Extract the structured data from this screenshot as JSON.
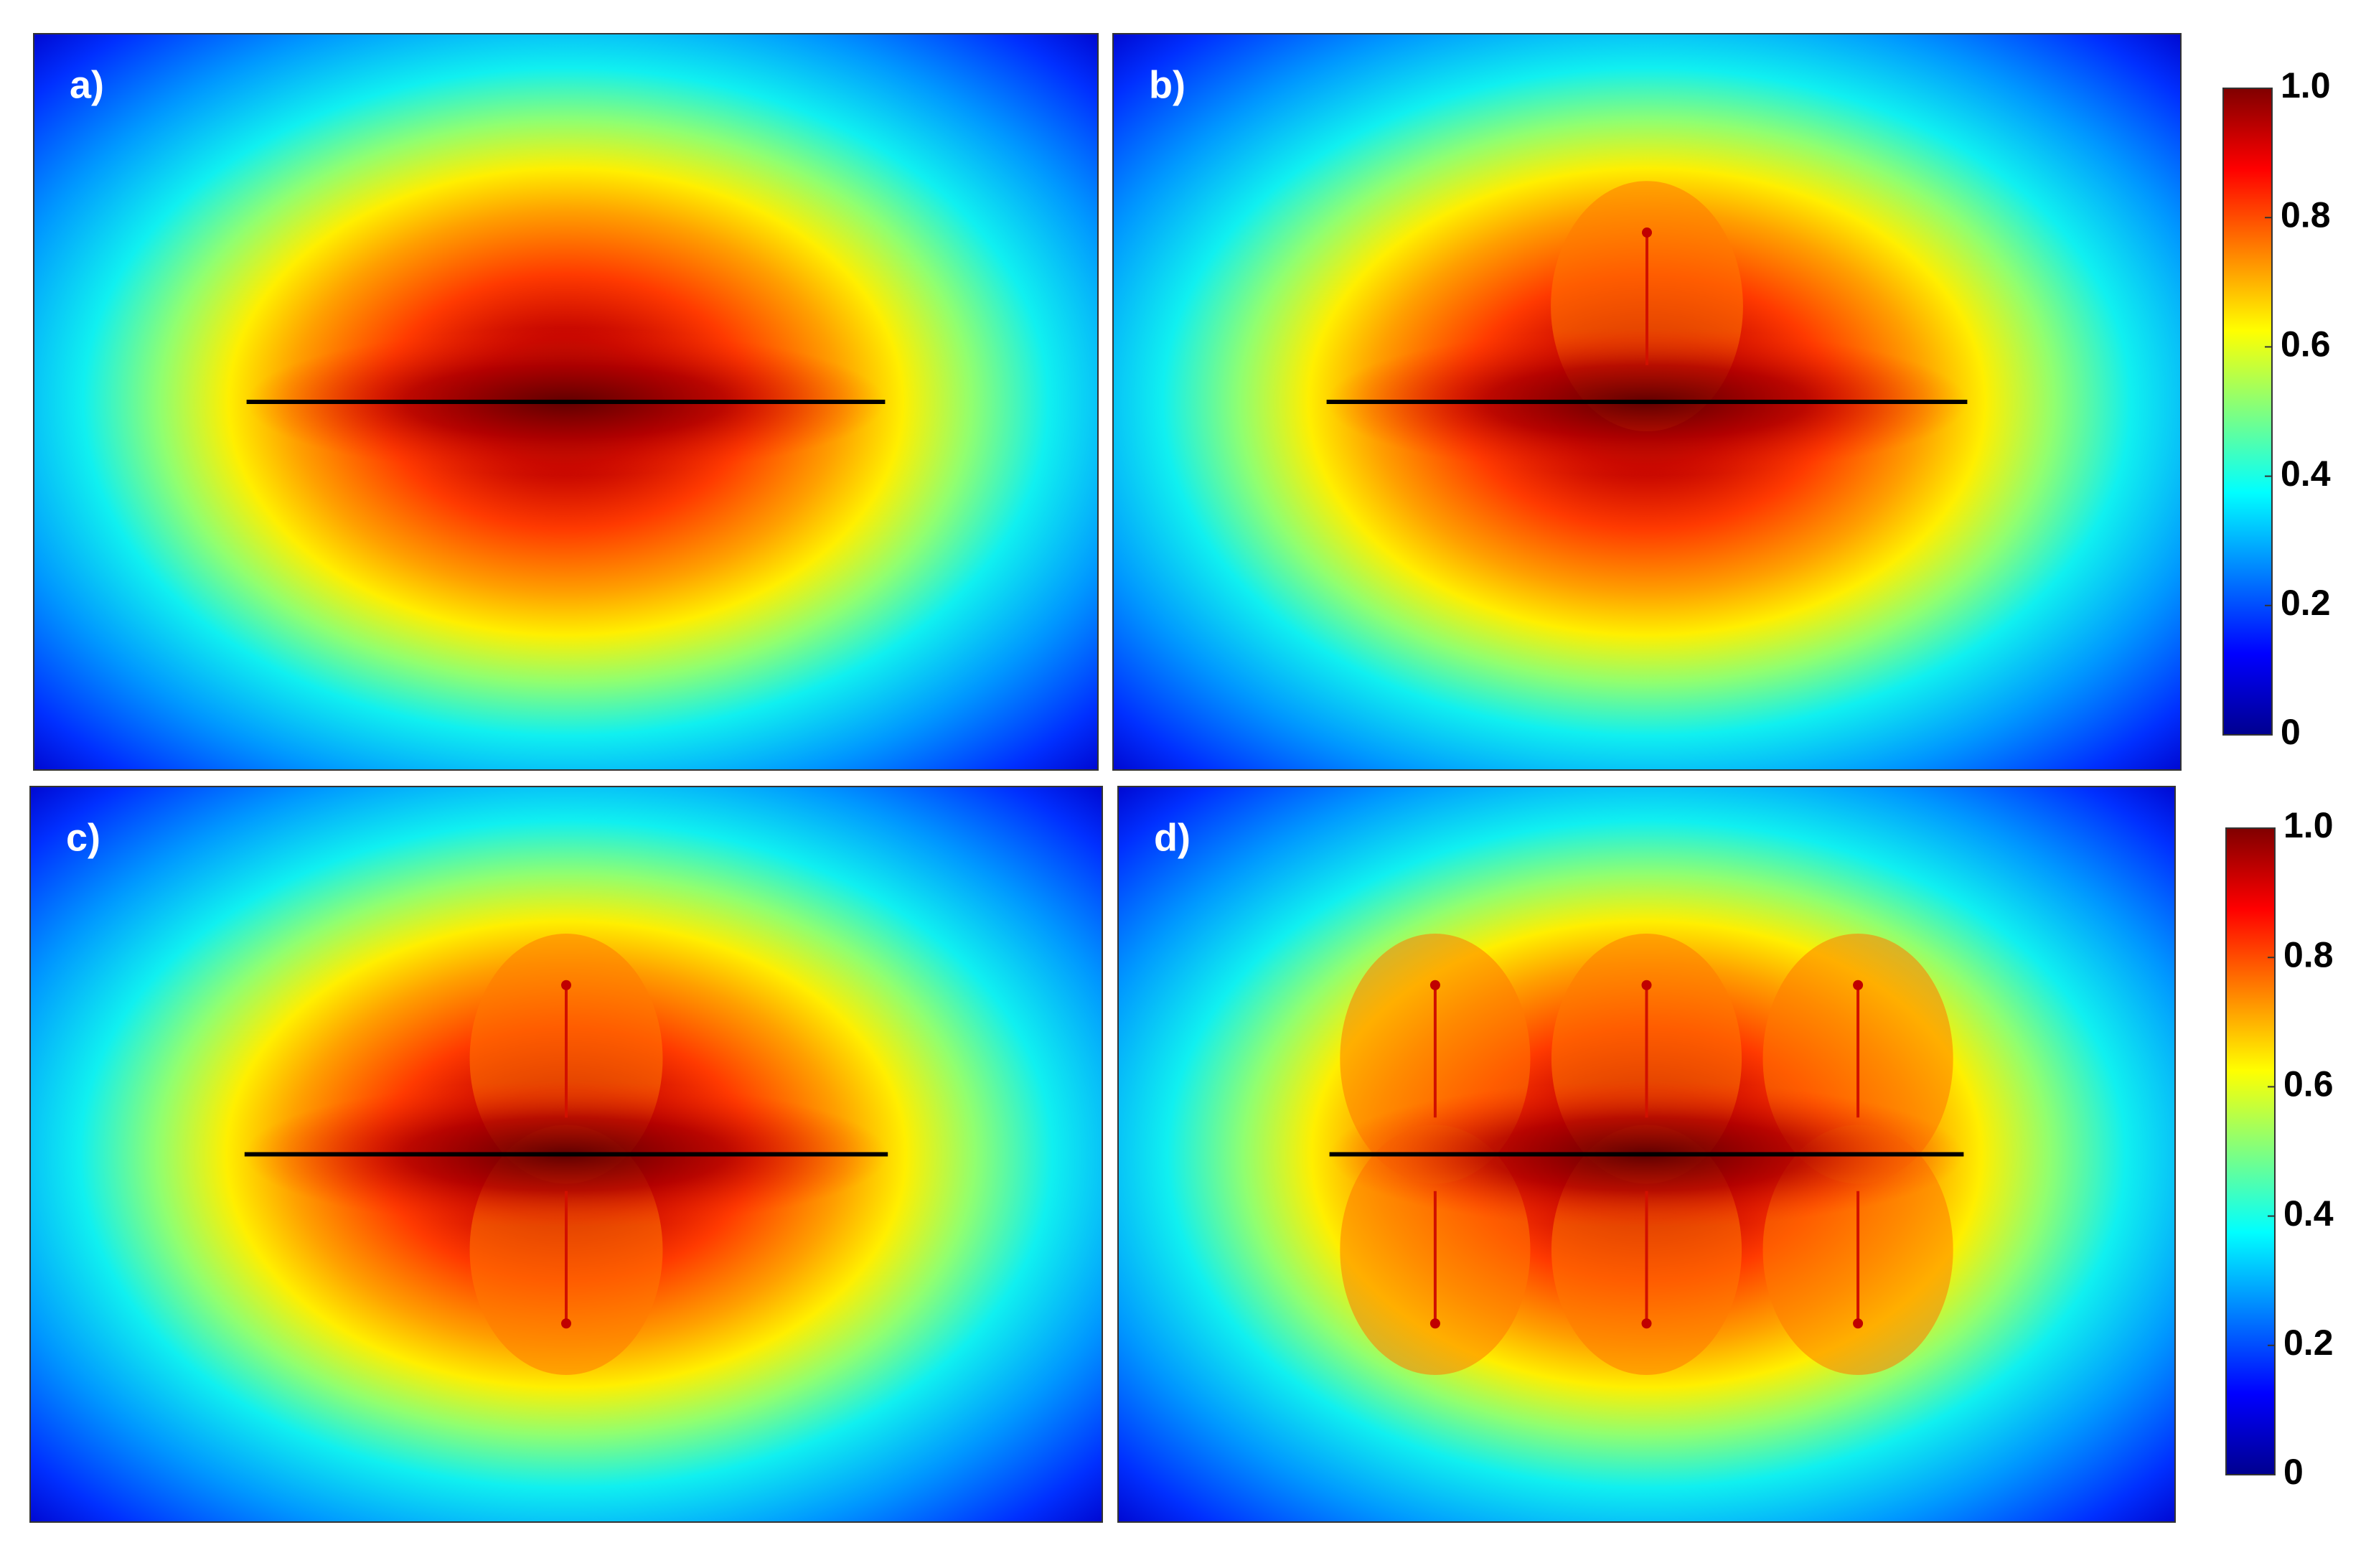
{
  "chart_data": [
    {
      "type": "contour",
      "title": "a)"
    },
    {
      "type": "contour",
      "title": "b)",
      "clim": [
        0,
        1
      ],
      "cticks": [
        0,
        0.2,
        0.4,
        0.6,
        0.8,
        {
          "value": 1,
          "label": "1.0"
        }
      ]
    },
    {
      "type": "contour",
      "title": "c)"
    },
    {
      "type": "contour",
      "title": "d)",
      "clim": [
        0,
        1
      ],
      "cticks": [
        0,
        0.2,
        0.4,
        0.6,
        0.8,
        {
          "value": 1,
          "label": "1.0"
        }
      ]
    }
  ]
}
